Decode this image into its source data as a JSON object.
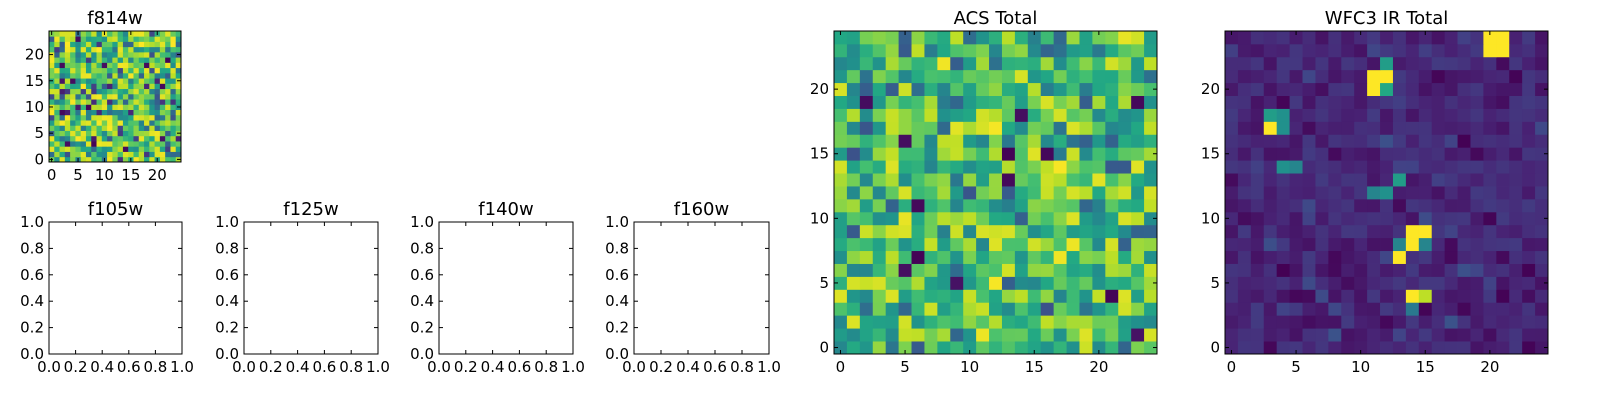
{
  "chart_data": [
    {
      "type": "heatmap",
      "title": "f814w",
      "colormap": "viridis",
      "grid_size": 25,
      "xlim": [
        -0.5,
        24.5
      ],
      "ylim": [
        -0.5,
        24.5
      ],
      "xticks": [
        0,
        5,
        10,
        15,
        20
      ],
      "yticks": [
        0,
        5,
        10,
        15,
        20
      ],
      "values_description": "uniform random noise, values spread across the full colormap",
      "seed": 814
    },
    {
      "type": "empty",
      "title": "f105w",
      "xlim": [
        0,
        1
      ],
      "ylim": [
        0,
        1
      ],
      "xticks": [
        "0.0",
        "0.2",
        "0.4",
        "0.6",
        "0.8",
        "1.0"
      ],
      "yticks": [
        "0.0",
        "0.2",
        "0.4",
        "0.6",
        "0.8",
        "1.0"
      ]
    },
    {
      "type": "empty",
      "title": "f125w",
      "xlim": [
        0,
        1
      ],
      "ylim": [
        0,
        1
      ],
      "xticks": [
        "0.0",
        "0.2",
        "0.4",
        "0.6",
        "0.8",
        "1.0"
      ],
      "yticks": [
        "0.0",
        "0.2",
        "0.4",
        "0.6",
        "0.8",
        "1.0"
      ]
    },
    {
      "type": "empty",
      "title": "f140w",
      "xlim": [
        0,
        1
      ],
      "ylim": [
        0,
        1
      ],
      "xticks": [
        "0.0",
        "0.2",
        "0.4",
        "0.6",
        "0.8",
        "1.0"
      ],
      "yticks": [
        "0.0",
        "0.2",
        "0.4",
        "0.6",
        "0.8",
        "1.0"
      ]
    },
    {
      "type": "empty",
      "title": "f160w",
      "xlim": [
        0,
        1
      ],
      "ylim": [
        0,
        1
      ],
      "xticks": [
        "0.0",
        "0.2",
        "0.4",
        "0.6",
        "0.8",
        "1.0"
      ],
      "yticks": [
        "0.0",
        "0.2",
        "0.4",
        "0.6",
        "0.8",
        "1.0"
      ]
    },
    {
      "type": "heatmap",
      "title": "ACS Total",
      "colormap": "viridis",
      "grid_size": 25,
      "xlim": [
        -0.5,
        24.5
      ],
      "ylim": [
        -0.5,
        24.5
      ],
      "xticks": [
        0,
        5,
        10,
        15,
        20
      ],
      "yticks": [
        0,
        5,
        10,
        15,
        20
      ],
      "values_description": "random noise skewed toward high values (mostly green/yellow)",
      "seed": 2024
    },
    {
      "type": "heatmap",
      "title": "WFC3 IR Total",
      "colormap": "viridis",
      "grid_size": 25,
      "xlim": [
        -0.5,
        24.5
      ],
      "ylim": [
        -0.5,
        24.5
      ],
      "xticks": [
        0,
        5,
        10,
        15,
        20
      ],
      "yticks": [
        0,
        5,
        10,
        15,
        20
      ],
      "values_description": "low-level dark noise with a few bright pixels",
      "seed": 3031,
      "hotspots": [
        {
          "x": 20,
          "y": 24,
          "v": 1.0
        },
        {
          "x": 21,
          "y": 24,
          "v": 1.0
        },
        {
          "x": 20,
          "y": 23,
          "v": 1.0
        },
        {
          "x": 21,
          "y": 23,
          "v": 1.0
        },
        {
          "x": 11,
          "y": 21,
          "v": 1.0
        },
        {
          "x": 12,
          "y": 21,
          "v": 1.0
        },
        {
          "x": 11,
          "y": 20,
          "v": 1.0
        },
        {
          "x": 12,
          "y": 20,
          "v": 0.6
        },
        {
          "x": 12,
          "y": 22,
          "v": 0.55
        },
        {
          "x": 3,
          "y": 18,
          "v": 0.55
        },
        {
          "x": 4,
          "y": 18,
          "v": 0.5
        },
        {
          "x": 3,
          "y": 17,
          "v": 1.0
        },
        {
          "x": 4,
          "y": 17,
          "v": 0.5
        },
        {
          "x": 4,
          "y": 14,
          "v": 0.5
        },
        {
          "x": 5,
          "y": 14,
          "v": 0.45
        },
        {
          "x": 11,
          "y": 12,
          "v": 0.45
        },
        {
          "x": 12,
          "y": 12,
          "v": 0.5
        },
        {
          "x": 13,
          "y": 13,
          "v": 0.55
        },
        {
          "x": 14,
          "y": 9,
          "v": 1.0
        },
        {
          "x": 15,
          "y": 9,
          "v": 1.0
        },
        {
          "x": 14,
          "y": 8,
          "v": 1.0
        },
        {
          "x": 15,
          "y": 8,
          "v": 0.45
        },
        {
          "x": 13,
          "y": 8,
          "v": 0.45
        },
        {
          "x": 13,
          "y": 7,
          "v": 1.0
        },
        {
          "x": 14,
          "y": 4,
          "v": 1.0
        },
        {
          "x": 15,
          "y": 4,
          "v": 0.9
        },
        {
          "x": 14,
          "y": 3,
          "v": 0.4
        }
      ]
    }
  ]
}
